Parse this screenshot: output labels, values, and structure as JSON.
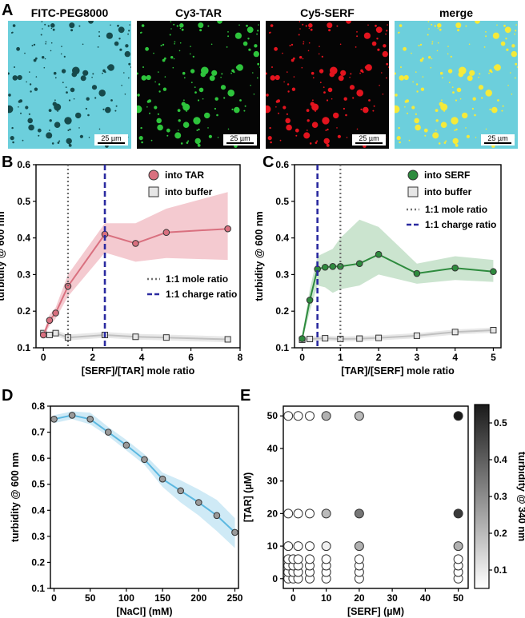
{
  "panel_letters": {
    "a": "A",
    "b": "B",
    "c": "C",
    "d": "D",
    "e": "E"
  },
  "micrographs": [
    {
      "title": "FITC-PEG8000",
      "scale": "25 µm",
      "bg": "#6ccfdc",
      "dot": "#164a4c"
    },
    {
      "title": "Cy3-TAR",
      "scale": "25 µm",
      "bg": "#050505",
      "dot": "#2ec43c"
    },
    {
      "title": "Cy5-SERF",
      "scale": "25 µm",
      "bg": "#050505",
      "dot": "#e3141e"
    },
    {
      "title": "merge",
      "scale": "25 µm",
      "bg": "#6ccfdc",
      "dot": "#f5ea3a"
    }
  ],
  "chart_data": [
    {
      "id": "B",
      "type": "line",
      "xlabel": "[SERF]/[TAR] mole ratio",
      "ylabel": "turbidity @ 600 nm",
      "xlim": [
        -0.3,
        8
      ],
      "ylim": [
        0.1,
        0.6
      ],
      "xticks": [
        "0",
        "2",
        "4",
        "6",
        "8"
      ],
      "yticks": [
        "0.1",
        "0.2",
        "0.3",
        "0.4",
        "0.5",
        "0.6"
      ],
      "series": [
        {
          "name": "into TAR",
          "color": "#d9707f",
          "band": "#f0b8c0",
          "x": [
            0,
            0.25,
            0.5,
            1,
            2.5,
            3.75,
            5,
            7.5
          ],
          "y": [
            0.135,
            0.175,
            0.195,
            0.268,
            0.41,
            0.385,
            0.415,
            0.425
          ],
          "lo": [
            0.13,
            0.16,
            0.18,
            0.24,
            0.36,
            0.335,
            0.345,
            0.34
          ],
          "hi": [
            0.14,
            0.19,
            0.21,
            0.3,
            0.44,
            0.44,
            0.48,
            0.525
          ]
        },
        {
          "name": "into buffer",
          "color": "#c0c0c0",
          "band": "#e0e0e0",
          "x": [
            0,
            0.25,
            0.5,
            1,
            2.5,
            3.75,
            5,
            7.5
          ],
          "y": [
            0.14,
            0.135,
            0.14,
            0.128,
            0.135,
            0.13,
            0.128,
            0.123
          ],
          "lo": [
            0.133,
            0.128,
            0.132,
            0.12,
            0.127,
            0.122,
            0.12,
            0.115
          ],
          "hi": [
            0.147,
            0.142,
            0.148,
            0.136,
            0.143,
            0.138,
            0.136,
            0.131
          ]
        }
      ],
      "vlines": [
        {
          "label": "1:1 mole ratio",
          "x": 1,
          "color": "#707070",
          "style": "dotted"
        },
        {
          "label": "1:1 charge ratio",
          "x": 2.5,
          "color": "#2a2aa0",
          "style": "dashed"
        }
      ]
    },
    {
      "id": "C",
      "type": "line",
      "xlabel": "[TAR]/[SERF] mole ratio",
      "ylabel": "turbidity @ 600 nm",
      "xlim": [
        -0.2,
        5.2
      ],
      "ylim": [
        0.1,
        0.6
      ],
      "xticks": [
        "0",
        "1",
        "2",
        "3",
        "4",
        "5"
      ],
      "yticks": [
        "0.1",
        "0.2",
        "0.3",
        "0.4",
        "0.5",
        "0.6"
      ],
      "series": [
        {
          "name": "into SERF",
          "color": "#2e8b3e",
          "band": "#b9dbbf",
          "x": [
            0,
            0.2,
            0.4,
            0.6,
            0.8,
            1,
            1.5,
            2,
            3,
            4,
            5
          ],
          "y": [
            0.125,
            0.23,
            0.315,
            0.32,
            0.322,
            0.322,
            0.33,
            0.355,
            0.303,
            0.318,
            0.308
          ],
          "lo": [
            0.118,
            0.2,
            0.27,
            0.265,
            0.25,
            0.26,
            0.27,
            0.3,
            0.275,
            0.285,
            0.28
          ],
          "hi": [
            0.132,
            0.26,
            0.35,
            0.36,
            0.37,
            0.4,
            0.45,
            0.43,
            0.33,
            0.35,
            0.34
          ]
        },
        {
          "name": "into buffer",
          "color": "#c0c0c0",
          "band": "#e0e0e0",
          "x": [
            0,
            0.2,
            0.6,
            1,
            1.5,
            2,
            3,
            4,
            5
          ],
          "y": [
            0.122,
            0.124,
            0.126,
            0.124,
            0.125,
            0.127,
            0.133,
            0.143,
            0.148
          ],
          "lo": [
            0.115,
            0.117,
            0.119,
            0.117,
            0.118,
            0.12,
            0.126,
            0.136,
            0.141
          ],
          "hi": [
            0.129,
            0.131,
            0.133,
            0.131,
            0.132,
            0.134,
            0.14,
            0.15,
            0.155
          ]
        }
      ],
      "vlines": [
        {
          "label": "1:1 mole ratio",
          "x": 1,
          "color": "#707070",
          "style": "dotted"
        },
        {
          "label": "1:1 charge ratio",
          "x": 0.4,
          "color": "#2a2aa0",
          "style": "dashed"
        }
      ]
    },
    {
      "id": "D",
      "type": "line",
      "xlabel": "[NaCl] (mM)",
      "ylabel": "turbidity @ 600 nm",
      "xlim": [
        -5,
        255
      ],
      "ylim": [
        0.1,
        0.8
      ],
      "xticks": [
        "0",
        "50",
        "100",
        "150",
        "200",
        "250"
      ],
      "yticks": [
        "0.1",
        "0.2",
        "0.3",
        "0.4",
        "0.5",
        "0.6",
        "0.7",
        "0.8"
      ],
      "series": [
        {
          "name": "NaCl",
          "color": "#5cb8e0",
          "band": "#bfe3f3",
          "marker": "#9a9a9a",
          "x": [
            0,
            25,
            50,
            75,
            100,
            125,
            150,
            175,
            200,
            225,
            250
          ],
          "y": [
            0.75,
            0.765,
            0.75,
            0.7,
            0.65,
            0.595,
            0.52,
            0.475,
            0.43,
            0.38,
            0.315
          ],
          "lo": [
            0.735,
            0.75,
            0.73,
            0.685,
            0.63,
            0.575,
            0.49,
            0.43,
            0.38,
            0.32,
            0.255
          ],
          "hi": [
            0.765,
            0.78,
            0.775,
            0.72,
            0.67,
            0.615,
            0.545,
            0.515,
            0.48,
            0.44,
            0.37
          ]
        }
      ]
    },
    {
      "id": "E",
      "type": "scatter",
      "xlabel": "[SERF] (µM)",
      "ylabel": "[TAR] (µM)",
      "xlim": [
        -3,
        53
      ],
      "ylim": [
        -3,
        53
      ],
      "xticks": [
        "0",
        "10",
        "20",
        "30",
        "40",
        "50"
      ],
      "yticks": [
        "0",
        "10",
        "20",
        "30",
        "40",
        "50"
      ],
      "colorbar": {
        "label": "turbidity @ 340 nm",
        "min": 0.05,
        "max": 0.55,
        "ticks": [
          "0.1",
          "0.2",
          "0.3",
          "0.4",
          "0.5"
        ]
      },
      "points": [
        {
          "x": -1.5,
          "y": 0,
          "v": 0.05
        },
        {
          "x": 0,
          "y": 0,
          "v": 0.05
        },
        {
          "x": 1.5,
          "y": 0,
          "v": 0.05
        },
        {
          "x": 5,
          "y": 0,
          "v": 0.05
        },
        {
          "x": 10,
          "y": 0,
          "v": 0.05
        },
        {
          "x": 20,
          "y": 0,
          "v": 0.05
        },
        {
          "x": 50,
          "y": 0,
          "v": 0.05
        },
        {
          "x": -1.5,
          "y": 2,
          "v": 0.05
        },
        {
          "x": 0,
          "y": 2,
          "v": 0.05
        },
        {
          "x": 1.5,
          "y": 2,
          "v": 0.05
        },
        {
          "x": 5,
          "y": 2,
          "v": 0.05
        },
        {
          "x": 10,
          "y": 2,
          "v": 0.05
        },
        {
          "x": 20,
          "y": 2,
          "v": 0.05
        },
        {
          "x": 50,
          "y": 2,
          "v": 0.05
        },
        {
          "x": -1.5,
          "y": 4,
          "v": 0.05
        },
        {
          "x": 0,
          "y": 4,
          "v": 0.05
        },
        {
          "x": 1.5,
          "y": 4,
          "v": 0.05
        },
        {
          "x": 5,
          "y": 4,
          "v": 0.05
        },
        {
          "x": 10,
          "y": 4,
          "v": 0.05
        },
        {
          "x": 20,
          "y": 4,
          "v": 0.05
        },
        {
          "x": 50,
          "y": 4,
          "v": 0.05
        },
        {
          "x": -1.5,
          "y": 6,
          "v": 0.05
        },
        {
          "x": 0,
          "y": 6,
          "v": 0.05
        },
        {
          "x": 1.5,
          "y": 6,
          "v": 0.05
        },
        {
          "x": 5,
          "y": 6,
          "v": 0.05
        },
        {
          "x": 10,
          "y": 6,
          "v": 0.05
        },
        {
          "x": 20,
          "y": 6,
          "v": 0.05
        },
        {
          "x": 50,
          "y": 6,
          "v": 0.05
        },
        {
          "x": -1.5,
          "y": 10,
          "v": 0.05
        },
        {
          "x": 1.5,
          "y": 10,
          "v": 0.05
        },
        {
          "x": 5,
          "y": 10,
          "v": 0.05
        },
        {
          "x": 10,
          "y": 10,
          "v": 0.08
        },
        {
          "x": 20,
          "y": 10,
          "v": 0.22
        },
        {
          "x": 50,
          "y": 10,
          "v": 0.22
        },
        {
          "x": -1.5,
          "y": 20,
          "v": 0.05
        },
        {
          "x": 1.5,
          "y": 20,
          "v": 0.05
        },
        {
          "x": 5,
          "y": 20,
          "v": 0.05
        },
        {
          "x": 10,
          "y": 20,
          "v": 0.2
        },
        {
          "x": 20,
          "y": 20,
          "v": 0.35
        },
        {
          "x": 50,
          "y": 20,
          "v": 0.48
        },
        {
          "x": -1.5,
          "y": 50,
          "v": 0.05
        },
        {
          "x": 1.5,
          "y": 50,
          "v": 0.05
        },
        {
          "x": 5,
          "y": 50,
          "v": 0.05
        },
        {
          "x": 10,
          "y": 50,
          "v": 0.22
        },
        {
          "x": 20,
          "y": 50,
          "v": 0.2
        },
        {
          "x": 50,
          "y": 50,
          "v": 0.55
        }
      ]
    }
  ]
}
